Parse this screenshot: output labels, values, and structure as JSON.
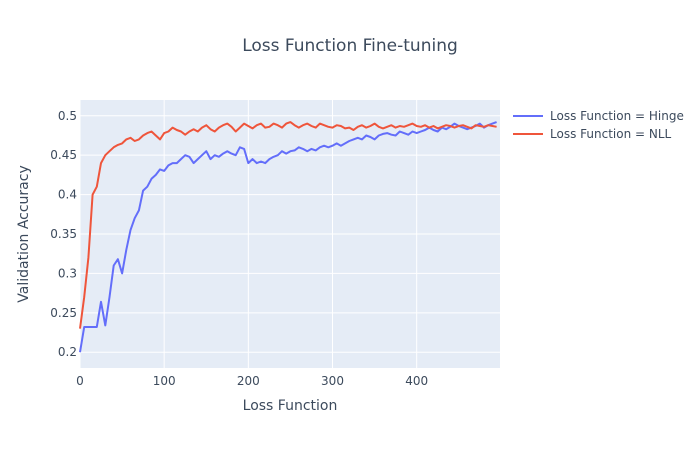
{
  "chart_data": {
    "type": "line",
    "title": "Loss Function Fine-tuning",
    "xlabel": "Loss Function",
    "ylabel": "Validation Accuracy",
    "xlim": [
      0,
      499
    ],
    "ylim": [
      0.18,
      0.52
    ],
    "x_ticks": [
      0,
      100,
      200,
      300,
      400
    ],
    "y_ticks": [
      0.2,
      0.25,
      0.3,
      0.35,
      0.4,
      0.45,
      0.5
    ],
    "x_tick_labels": [
      "0",
      "100",
      "200",
      "300",
      "400"
    ],
    "y_tick_labels": [
      "0.2",
      "0.25",
      "0.3",
      "0.35",
      "0.4",
      "0.45",
      "0.5"
    ],
    "grid": true,
    "legend_position": "top-right outside",
    "x_step": 5,
    "series": [
      {
        "name": "Loss Function = Hinge",
        "color": "#636efa",
        "values": [
          0.2,
          0.232,
          0.232,
          0.232,
          0.232,
          0.264,
          0.234,
          0.27,
          0.31,
          0.318,
          0.3,
          0.33,
          0.355,
          0.37,
          0.38,
          0.405,
          0.41,
          0.42,
          0.425,
          0.432,
          0.43,
          0.437,
          0.44,
          0.44,
          0.445,
          0.45,
          0.448,
          0.44,
          0.445,
          0.45,
          0.455,
          0.445,
          0.45,
          0.448,
          0.452,
          0.455,
          0.452,
          0.45,
          0.46,
          0.458,
          0.44,
          0.445,
          0.44,
          0.442,
          0.44,
          0.445,
          0.448,
          0.45,
          0.455,
          0.452,
          0.455,
          0.456,
          0.46,
          0.458,
          0.455,
          0.458,
          0.456,
          0.46,
          0.462,
          0.46,
          0.462,
          0.465,
          0.462,
          0.465,
          0.468,
          0.47,
          0.472,
          0.47,
          0.475,
          0.473,
          0.47,
          0.475,
          0.477,
          0.478,
          0.476,
          0.475,
          0.48,
          0.478,
          0.476,
          0.48,
          0.478,
          0.48,
          0.482,
          0.485,
          0.482,
          0.48,
          0.485,
          0.483,
          0.486,
          0.49,
          0.487,
          0.485,
          0.483,
          0.485,
          0.487,
          0.49,
          0.485,
          0.488,
          0.49,
          0.492
        ]
      },
      {
        "name": "Loss Function = NLL",
        "color": "#ef553b",
        "values": [
          0.23,
          0.27,
          0.32,
          0.4,
          0.41,
          0.44,
          0.45,
          0.455,
          0.46,
          0.463,
          0.465,
          0.47,
          0.472,
          0.468,
          0.47,
          0.475,
          0.478,
          0.48,
          0.475,
          0.47,
          0.478,
          0.48,
          0.485,
          0.482,
          0.48,
          0.476,
          0.48,
          0.483,
          0.48,
          0.485,
          0.488,
          0.483,
          0.48,
          0.485,
          0.488,
          0.49,
          0.486,
          0.48,
          0.485,
          0.49,
          0.487,
          0.484,
          0.488,
          0.49,
          0.485,
          0.486,
          0.49,
          0.488,
          0.485,
          0.49,
          0.492,
          0.488,
          0.485,
          0.488,
          0.49,
          0.487,
          0.485,
          0.49,
          0.488,
          0.486,
          0.485,
          0.488,
          0.487,
          0.484,
          0.485,
          0.482,
          0.486,
          0.488,
          0.485,
          0.487,
          0.49,
          0.486,
          0.484,
          0.486,
          0.488,
          0.485,
          0.487,
          0.486,
          0.488,
          0.49,
          0.487,
          0.486,
          0.488,
          0.485,
          0.487,
          0.484,
          0.486,
          0.488,
          0.487,
          0.485,
          0.487,
          0.488,
          0.486,
          0.484,
          0.488,
          0.487,
          0.486,
          0.488,
          0.487,
          0.486
        ]
      }
    ]
  }
}
